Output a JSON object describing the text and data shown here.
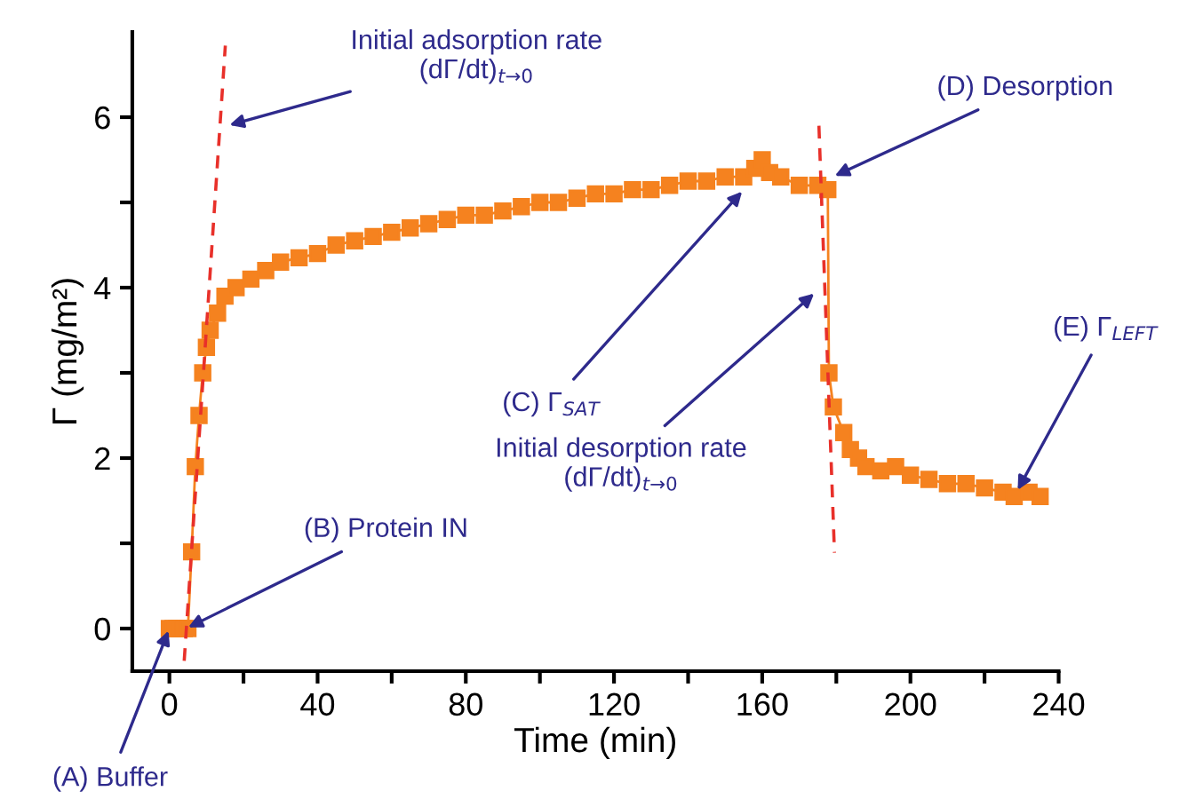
{
  "chart_data": {
    "type": "line",
    "xlabel": "Time (min)",
    "ylabel": "Γ (mg/m²)",
    "xlim": [
      -10,
      240
    ],
    "ylim": [
      -0.5,
      7
    ],
    "xticks": [
      0,
      {
        "value": 20,
        "label": null
      },
      40,
      {
        "value": 60,
        "label": null
      },
      80,
      {
        "value": 100,
        "label": null
      },
      120,
      {
        "value": 140,
        "label": null
      },
      160,
      {
        "value": 180,
        "label": null
      },
      200,
      {
        "value": 220,
        "label": null
      },
      240
    ],
    "yticks": [
      0,
      {
        "value": 1,
        "label": null
      },
      2,
      {
        "value": 3,
        "label": null
      },
      4,
      {
        "value": 5,
        "label": null
      },
      6
    ],
    "grid": false,
    "legend": false,
    "series": [
      {
        "color": "#f5821f",
        "marker": "square",
        "line_style": "solid",
        "x": [
          0,
          1,
          2,
          3,
          4,
          5,
          6,
          7,
          8,
          9,
          10,
          11,
          13,
          15,
          18,
          22,
          26,
          30,
          35,
          40,
          45,
          50,
          55,
          60,
          65,
          70,
          75,
          80,
          85,
          90,
          95,
          100,
          105,
          110,
          115,
          120,
          125,
          130,
          135,
          140,
          145,
          150,
          155,
          158,
          160,
          162,
          165,
          170,
          175,
          177.7,
          178,
          179.2,
          182,
          183.8,
          186,
          188,
          192,
          196,
          200,
          205,
          210,
          215,
          220,
          225,
          228,
          232,
          235
        ],
        "values": [
          0,
          0,
          0,
          0,
          0,
          0,
          0.9,
          1.9,
          2.5,
          3.0,
          3.3,
          3.5,
          3.7,
          3.9,
          4.0,
          4.1,
          4.2,
          4.3,
          4.35,
          4.4,
          4.5,
          4.55,
          4.6,
          4.65,
          4.7,
          4.75,
          4.8,
          4.85,
          4.85,
          4.9,
          4.95,
          5.0,
          5.0,
          5.05,
          5.1,
          5.1,
          5.15,
          5.15,
          5.2,
          5.25,
          5.25,
          5.3,
          5.3,
          5.4,
          5.5,
          5.35,
          5.3,
          5.2,
          5.2,
          5.15,
          3.0,
          2.6,
          2.3,
          2.1,
          2.0,
          1.9,
          1.85,
          1.9,
          1.8,
          1.75,
          1.7,
          1.7,
          1.65,
          1.6,
          1.55,
          1.6,
          1.55
        ]
      },
      {
        "color": "#e8302a",
        "marker": "none",
        "line_style": "dashed",
        "x": [
          4,
          15.1
        ],
        "values": [
          -0.38,
          6.84
        ]
      },
      {
        "color": "#e8302a",
        "marker": "none",
        "line_style": "dashed",
        "x": [
          175.3,
          179.5
        ],
        "values": [
          5.9,
          0.89
        ]
      }
    ],
    "annotations": [
      {
        "text": "Initial adsorption rate\n(dΓ/dt)$_{t→0}$",
        "x": 15.6,
        "y": 5.9
      },
      {
        "text": "(A) Buffer",
        "x": 0,
        "y": 0
      },
      {
        "text": "(B) Protein IN",
        "x": 4.5,
        "y": 0
      },
      {
        "text": "(C) Γ$_{SAT}$",
        "x": 155,
        "y": 5.15
      },
      {
        "text": "Initial desorption rate\n(dΓ/dt)$_{t→0}$",
        "x": 174.5,
        "y": 3.95
      },
      {
        "text": "(D) Desorption",
        "x": 179,
        "y": 5.3
      },
      {
        "text": "(E) Γ$_{LEFT}$",
        "x": 228,
        "y": 1.55
      }
    ]
  }
}
